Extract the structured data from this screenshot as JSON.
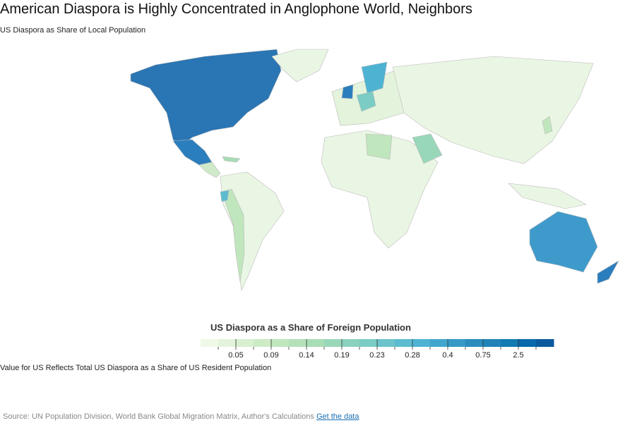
{
  "header": {
    "title": "American Diaspora is Highly Concentrated in Anglophone World, Neighbors",
    "subtitle": "US Diaspora as Share of Local Population"
  },
  "legend": {
    "title": "US Diaspora as a Share of Foreign Population",
    "colors": [
      "#f0f9e8",
      "#e4f4dc",
      "#d8efd0",
      "#ccebc5",
      "#c0e6bd",
      "#b4e1b9",
      "#a8ddb5",
      "#99d7b9",
      "#8ad1be",
      "#7bccc4",
      "#6cc3ca",
      "#5dbbcf",
      "#4eb3d3",
      "#41a6cd",
      "#3699c6",
      "#2b8cbe",
      "#2183b8",
      "#137ab2",
      "#0868ac",
      "#0a5a9e"
    ],
    "thresholds": [
      null,
      0.05,
      null,
      0.09,
      null,
      0.14,
      null,
      0.19,
      null,
      0.23,
      null,
      0.28,
      null,
      0.4,
      null,
      0.75,
      null,
      2.5,
      null
    ]
  },
  "note": "Value for US Reflects Total US Diaspora as a Share of US Resident Population",
  "footer": {
    "source": "Source: UN Population Division, World Bank Global Migration Matrix, Author's Calculations",
    "link": "Get the data"
  }
}
